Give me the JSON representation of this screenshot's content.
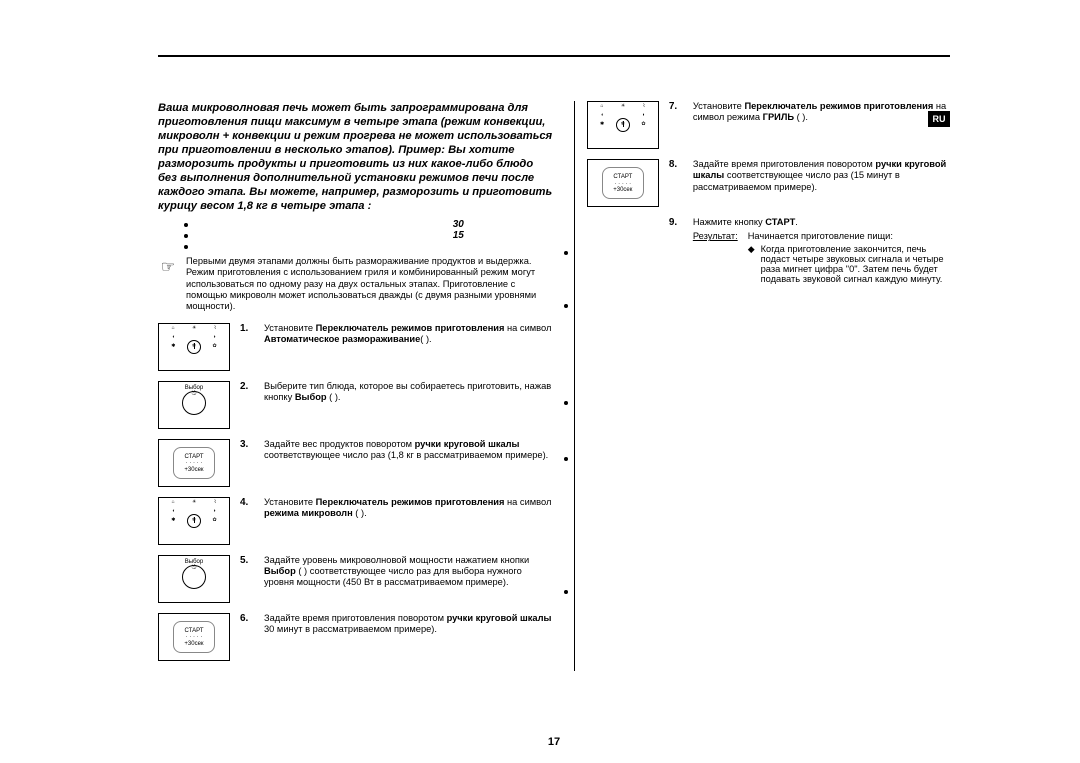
{
  "lang_badge": "RU",
  "page_number": "17",
  "intro": "Ваша микроволновая печь может быть запрограммирована для приготовления пищи максимум в четыре этапа (режим конвекции, микроволн + конвекции и режим прогрева не может использоваться при приготовлении в несколько этапов). Пример: Вы хотите разморозить продукты и приготовить из них какое-либо блюдо без выполнения дополнительной установки режимов печи после каждого этапа. Вы можете, например, разморозить и приготовить курицу весом 1,8 кг в четыре этапа :",
  "bullet_numbers": [
    "30",
    "15"
  ],
  "note_text": "Первыми двумя этапами должны быть размораживание продуктов и выдержка. Режим приготовления с использованием гриля и комбинированный режим могут использоваться по одному разу на двух остальных этапах. Приготовление с помощью микроволн может использоваться дважды (с двумя разными уровнями мощности).",
  "steps_left": [
    {
      "n": "1.",
      "html": "Установите <b>Переключатель режимов приготовления</b> на символ <b>Автоматическое размораживание</b>(      ).",
      "icon": "dial"
    },
    {
      "n": "2.",
      "html": "Выберите тип блюда, которое вы собираетесь приготовить, нажав кнопку <b>Выбор</b> (     ).",
      "icon": "vybor"
    },
    {
      "n": "3.",
      "html": "Задайте вес продуктов поворотом <b>ручки круговой шкалы</b> соответствующее число раз (1,8 кг в рассматриваемом примере).",
      "icon": "start"
    },
    {
      "n": "4.",
      "html": "Установите <b>Переключатель режимов приготовления</b> на символ <b>режима микроволн</b> (     ).",
      "icon": "dial"
    },
    {
      "n": "5.",
      "html": "Задайте уровень микроволновой мощности нажатием кнопки <b>Выбор</b> (     ) соответствующее число раз для выбора нужного уровня мощности (450 Вт в рассматриваемом примере).",
      "icon": "vybor"
    },
    {
      "n": "6.",
      "html": "Задайте время приготовления поворотом <b>ручки круговой шкалы</b> 30 минут в рассматриваемом примере).",
      "icon": "start"
    }
  ],
  "steps_right": [
    {
      "n": "7.",
      "html": "Установите <b>Переключатель режимов приготовления</b> на символ режима <b>ГРИЛЬ</b> (     ).",
      "icon": "dial"
    },
    {
      "n": "8.",
      "html": "Задайте время приготовления поворотом <b>ручки круговой шкалы</b> соответствующее число раз (15 минут в рассматриваемом примере).",
      "icon": "start"
    },
    {
      "n": "9.",
      "html": "Нажмите кнопку <b>СТАРТ</b>.",
      "icon": "none",
      "result": true
    }
  ],
  "result_label": "Результат:",
  "result_line1": "Начинается приготовление пищи:",
  "result_line2": "Когда приготовление закончится, печь подаст четыре звуковых сигнала и четыре раза мигнет цифра \"0\". Затем печь будет подавать звуковой сигнал каждую минуту.",
  "icon_labels": {
    "vybor": "Выбор",
    "start_top": "СТАРТ",
    "start_bot": "+30сек"
  },
  "right_dots_top": [
    194,
    247,
    344,
    400,
    533
  ]
}
